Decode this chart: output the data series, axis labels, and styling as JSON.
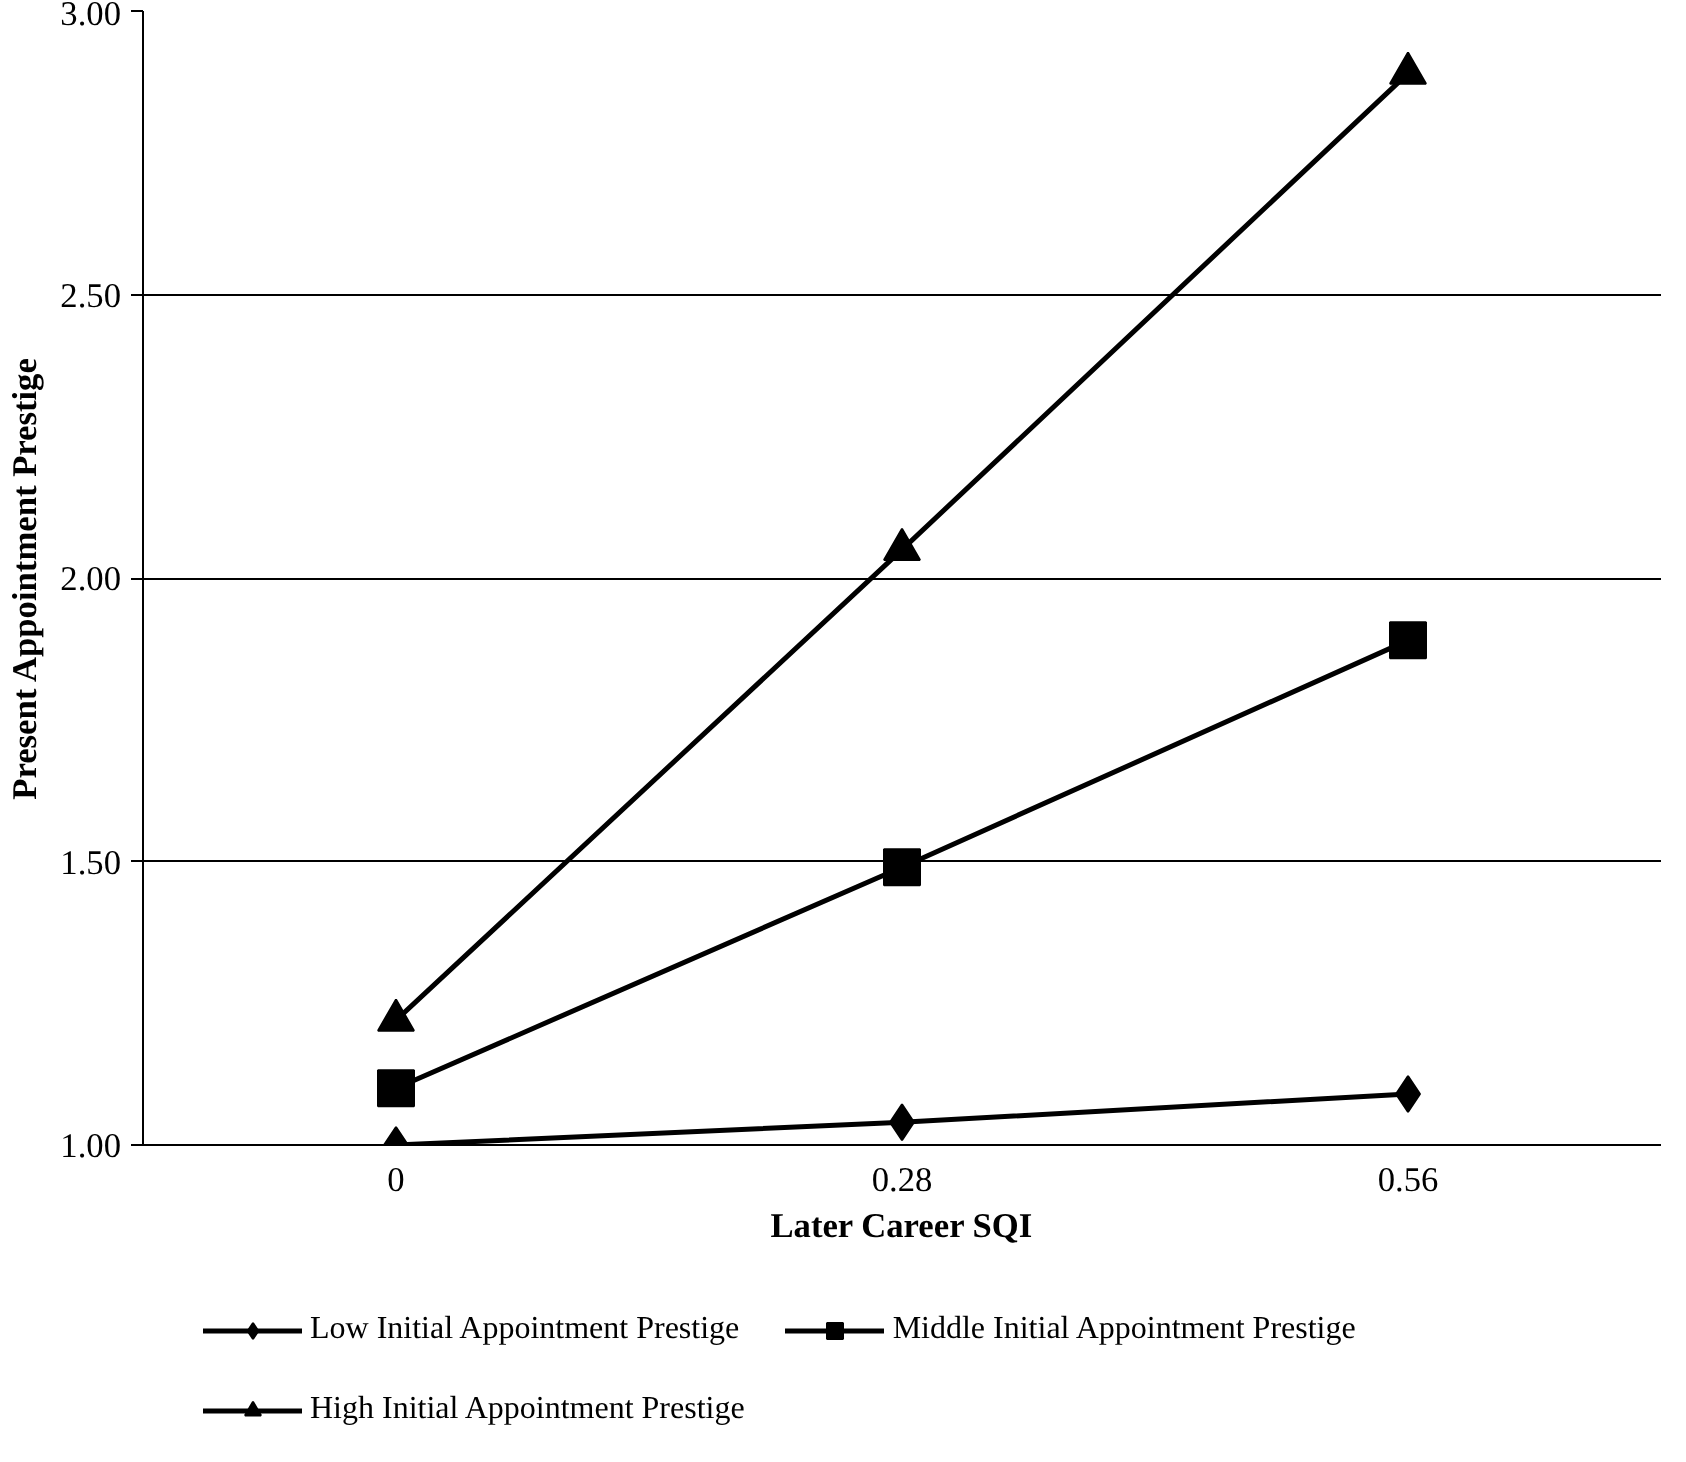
{
  "chart_data": {
    "type": "line",
    "xlabel": "Later Career SQI",
    "ylabel": "Present Appointment Prestige",
    "categories": [
      "0",
      "0.28",
      "0.56"
    ],
    "series": [
      {
        "name": "Low Initial Appointment Prestige",
        "color": "#000000",
        "marker": "diamond",
        "values": [
          1.0,
          1.04,
          1.09
        ]
      },
      {
        "name": "Middle Initial Appointment Prestige",
        "color": "#000000",
        "marker": "square",
        "values": [
          1.1,
          1.49,
          1.89
        ]
      },
      {
        "name": "High Initial Appointment Prestige",
        "color": "#000000",
        "marker": "triangle",
        "values": [
          1.22,
          2.05,
          2.89
        ]
      }
    ],
    "ylim": [
      1.0,
      3.0
    ],
    "yticks": [
      {
        "value": 1.0,
        "label": "1.00"
      },
      {
        "value": 1.5,
        "label": "1.50"
      },
      {
        "value": 2.0,
        "label": "2.00"
      },
      {
        "value": 2.5,
        "label": "2.50"
      },
      {
        "value": 3.0,
        "label": "3.00"
      }
    ],
    "grid": "y",
    "legend": "bottom",
    "line_style": "solid"
  }
}
